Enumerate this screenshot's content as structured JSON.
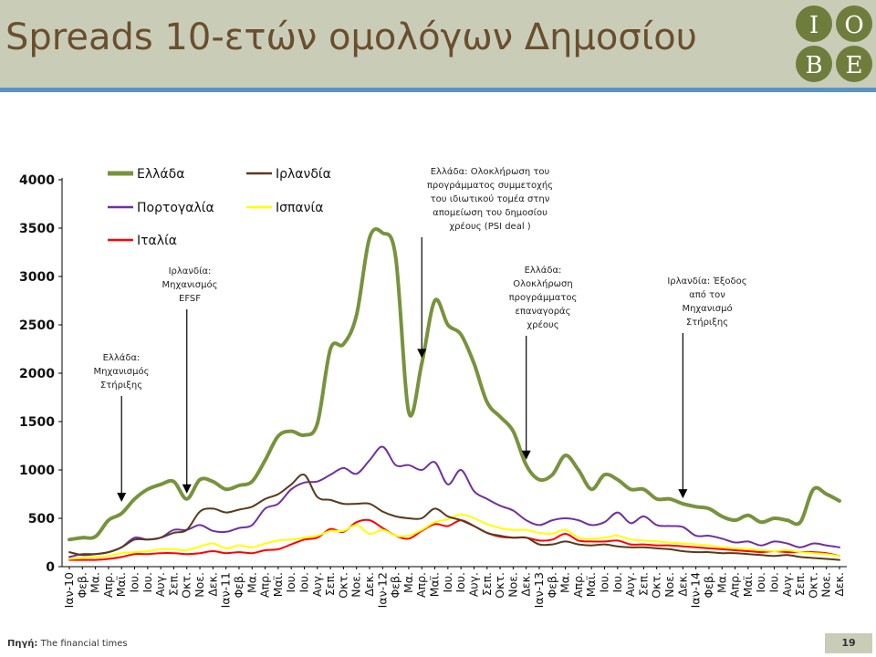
{
  "header": {
    "title": "Spreads 10-ετών ομολόγων Δημοσίου",
    "logo_letters": [
      "I",
      "O",
      "B",
      "E"
    ]
  },
  "footer": {
    "source_label": "Πηγή:",
    "source_text": " The financial times",
    "page_number": "19"
  },
  "colors": {
    "header_bg": "#c9cdb8",
    "header_line": "#5b93c8",
    "title": "#6b4e2e",
    "logo": "#6f7d3c"
  },
  "chart_data": {
    "type": "line",
    "title": "",
    "xlabel": "",
    "ylabel": "",
    "ylim": [
      0,
      4000
    ],
    "yticks": [
      "0",
      "500",
      "1000",
      "1500",
      "2000",
      "2500",
      "3000",
      "3500",
      "4000"
    ],
    "grid": false,
    "legend_position": "top-left",
    "categories": [
      "Ιαν-10",
      "Φεβ.",
      "Μα.",
      "Απρ.",
      "Μαϊ.",
      "Ιου.",
      "Ιου.",
      "Αυγ.",
      "Σεπ.",
      "Οκτ.",
      "Νοε.",
      "Δεκ.",
      "Ιαν-11",
      "Φεβ.",
      "Μα.",
      "Απρ.",
      "Μαϊ.",
      "Ιου.",
      "Ιου.",
      "Αυγ.",
      "Σεπ.",
      "Οκτ.",
      "Νοε.",
      "Δεκ.",
      "Ιαν-12",
      "Φεβ.",
      "Μα.",
      "Απρ.",
      "Μαϊ.",
      "Ιου.",
      "Ιου.",
      "Αυγ.",
      "Σεπ.",
      "Οκτ.",
      "Νοε.",
      "Δεκ.",
      "Ιαν-13",
      "Φεβ.",
      "Μα.",
      "Απρ.",
      "Μαϊ.",
      "Ιου.",
      "Ιου.",
      "Αυγ.",
      "Σεπ.",
      "Οκτ.",
      "Νοε.",
      "Δεκ.",
      "Ιαν-14",
      "Φεβ.",
      "Μα.",
      "Απρ.",
      "Μαϊ.",
      "Ιου.",
      "Ιου.",
      "Αυγ.",
      "Σεπ.",
      "Οκτ.",
      "Νοε.",
      "Δεκ."
    ],
    "series": [
      {
        "name": "Ελλάδα",
        "color": "#77933c",
        "width": 4,
        "values": [
          280,
          300,
          310,
          480,
          550,
          700,
          800,
          850,
          880,
          700,
          900,
          880,
          800,
          840,
          880,
          1100,
          1350,
          1400,
          1360,
          1480,
          2250,
          2300,
          2600,
          3400,
          3450,
          3200,
          1600,
          2100,
          2750,
          2500,
          2400,
          2100,
          1700,
          1550,
          1400,
          1050,
          900,
          950,
          1150,
          1000,
          800,
          950,
          900,
          800,
          800,
          700,
          700,
          650,
          620,
          600,
          520,
          480,
          530,
          460,
          500,
          480,
          460,
          800,
          750,
          680
        ]
      },
      {
        "name": "Ιρλανδία",
        "color": "#5a3a1a",
        "width": 2,
        "values": [
          150,
          120,
          130,
          150,
          200,
          280,
          280,
          300,
          350,
          380,
          570,
          600,
          560,
          590,
          620,
          700,
          750,
          850,
          950,
          720,
          690,
          650,
          650,
          650,
          570,
          520,
          500,
          500,
          600,
          520,
          480,
          420,
          350,
          320,
          300,
          300,
          230,
          230,
          260,
          230,
          220,
          230,
          210,
          200,
          200,
          190,
          180,
          160,
          150,
          150,
          140,
          140,
          130,
          120,
          110,
          120,
          100,
          90,
          80,
          70
        ]
      },
      {
        "name": "Πορτογαλία",
        "color": "#7030a0",
        "width": 2,
        "values": [
          100,
          130,
          130,
          150,
          200,
          300,
          280,
          300,
          380,
          380,
          430,
          370,
          360,
          400,
          430,
          600,
          650,
          800,
          870,
          880,
          950,
          1020,
          960,
          1100,
          1240,
          1050,
          1050,
          1000,
          1080,
          850,
          1000,
          780,
          700,
          630,
          580,
          480,
          430,
          480,
          500,
          480,
          430,
          460,
          560,
          450,
          520,
          430,
          420,
          410,
          320,
          320,
          290,
          250,
          260,
          220,
          260,
          240,
          200,
          240,
          220,
          200
        ]
      },
      {
        "name": "Ισπανία",
        "color": "#ffff00",
        "width": 2,
        "values": [
          80,
          90,
          100,
          110,
          140,
          150,
          160,
          180,
          180,
          170,
          210,
          240,
          190,
          220,
          200,
          240,
          270,
          280,
          300,
          320,
          370,
          370,
          430,
          340,
          380,
          320,
          320,
          380,
          460,
          490,
          540,
          500,
          440,
          400,
          380,
          380,
          350,
          340,
          380,
          300,
          290,
          300,
          320,
          280,
          270,
          260,
          250,
          240,
          230,
          220,
          200,
          190,
          180,
          170,
          160,
          170,
          150,
          140,
          130,
          110
        ]
      },
      {
        "name": "Ιταλία",
        "color": "#ff0000",
        "width": 2,
        "values": [
          70,
          70,
          70,
          80,
          100,
          130,
          130,
          140,
          140,
          130,
          140,
          160,
          140,
          150,
          140,
          170,
          180,
          230,
          280,
          300,
          390,
          360,
          460,
          480,
          400,
          320,
          290,
          370,
          440,
          420,
          480,
          420,
          350,
          310,
          300,
          300,
          270,
          280,
          340,
          270,
          260,
          260,
          270,
          230,
          230,
          220,
          220,
          210,
          200,
          190,
          180,
          170,
          160,
          150,
          160,
          150,
          150,
          150,
          140,
          110
        ]
      }
    ],
    "annotations": [
      {
        "lines": [
          "Ελλάδα:",
          "Μηχανισμός",
          "Στήριξης"
        ],
        "x_index": 4
      },
      {
        "lines": [
          "Ιρλανδία:",
          "Μηχανισμός",
          "EFSF"
        ],
        "x_index": 9
      },
      {
        "lines": [
          "Ελλάδα: Ολοκλήρωση του",
          "προγράμματος συμμετοχής",
          "του ιδιωτικού τομέα στην",
          "απομείωση του δημοσίου",
          "χρέους (PSI deal )"
        ],
        "x_index": 27
      },
      {
        "lines": [
          "Ελλάδα:",
          "Ολοκλήρωση",
          "προγράμματος",
          "επαναγοράς",
          "χρέους"
        ],
        "x_index": 35
      },
      {
        "lines": [
          "Ιρλανδία: Έξοδος",
          "από τον",
          "Μηχανισμό",
          "Στήριξης"
        ],
        "x_index": 47
      }
    ]
  }
}
